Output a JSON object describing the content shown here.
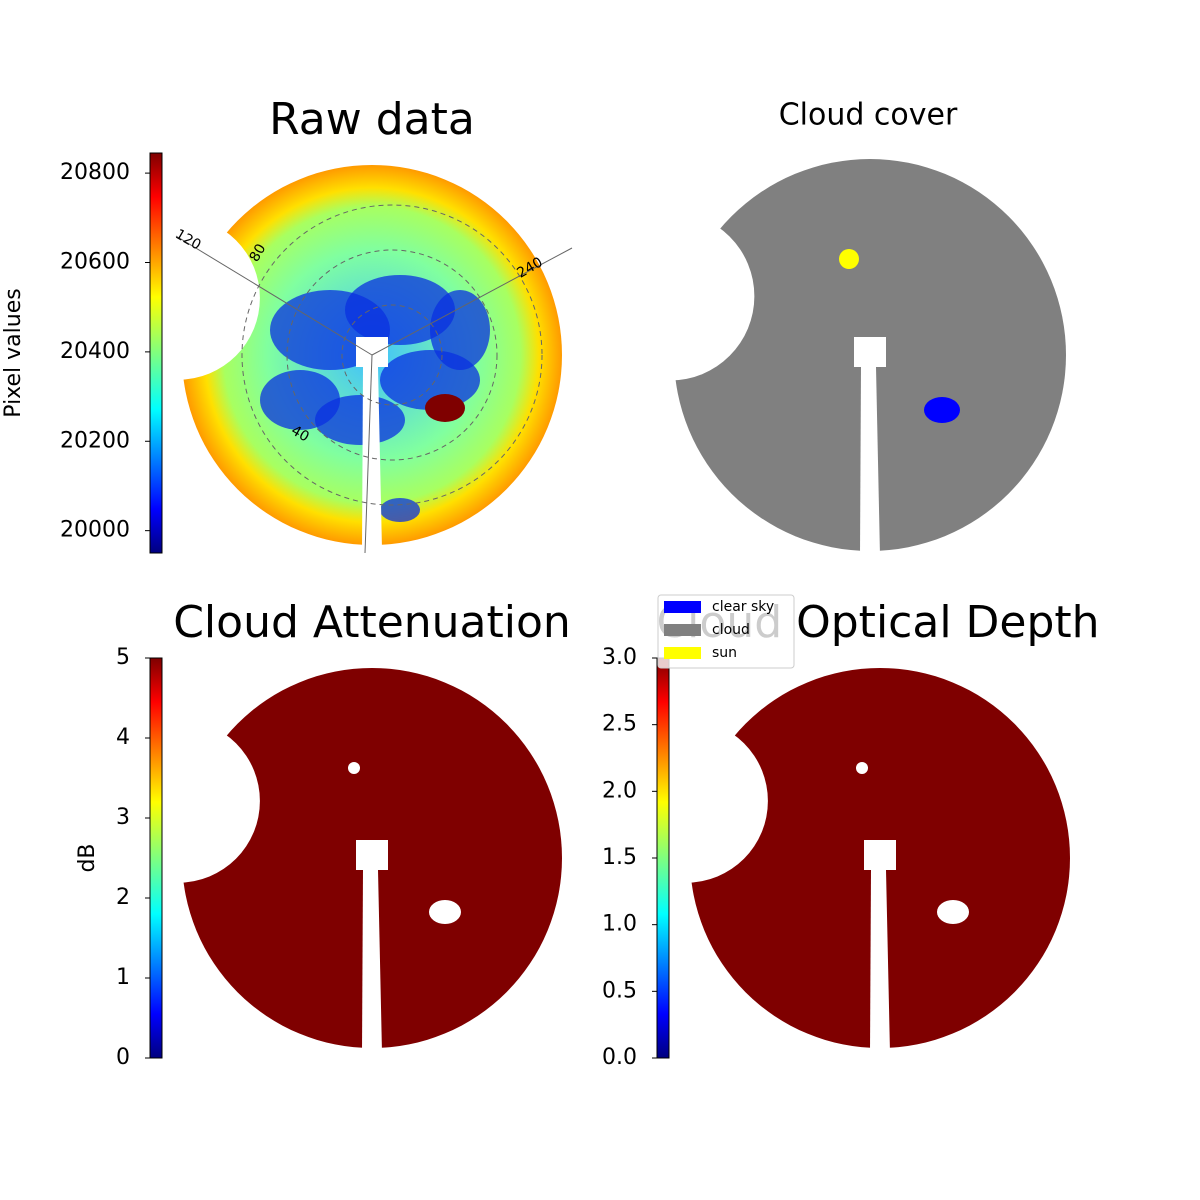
{
  "chart_data": [
    {
      "type": "image",
      "title": "Raw data",
      "colorbar_label": "Pixel values",
      "ylim": [
        19950,
        20845
      ],
      "yticks": [
        20000,
        20200,
        20400,
        20600,
        20800
      ],
      "annotations": [
        "120",
        "80",
        "240",
        "40"
      ]
    },
    {
      "type": "classes",
      "title": "Cloud cover",
      "legend": [
        {
          "name": "clear sky",
          "color": "#0000ff"
        },
        {
          "name": "cloud",
          "color": "#808080"
        },
        {
          "name": "sun",
          "color": "#ffff00"
        }
      ]
    },
    {
      "type": "image",
      "title": "Cloud Attenuation",
      "colorbar_label": "dB",
      "ylim": [
        0,
        5
      ],
      "yticks": [
        0,
        1,
        2,
        3,
        4,
        5
      ]
    },
    {
      "type": "image",
      "title": "Cloud Optical Depth",
      "ylim": [
        0,
        3
      ],
      "yticks": [
        {
          "value": 0,
          "label": "0.0"
        },
        0.5,
        {
          "value": 1,
          "label": "1.0"
        },
        1.5,
        {
          "value": 2,
          "label": "2.0"
        },
        2.5,
        {
          "value": 3,
          "label": "3.0"
        }
      ]
    }
  ]
}
